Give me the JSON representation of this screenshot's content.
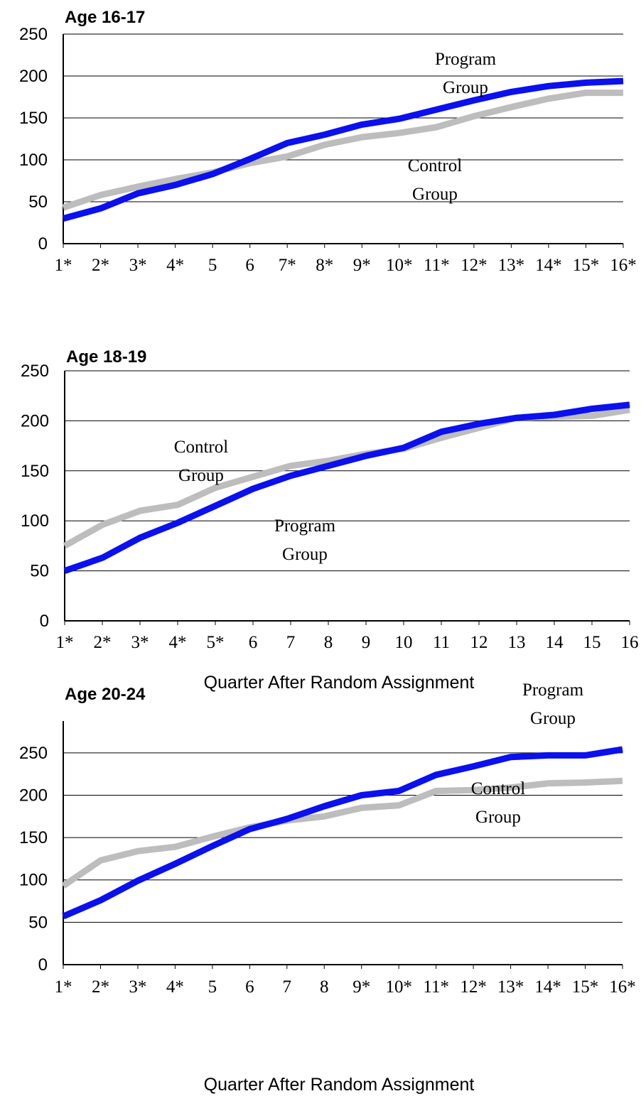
{
  "colors": {
    "program": "#0a10ee",
    "control": "#bdbdbd",
    "grid": "#000000",
    "axis": "#000000"
  },
  "chart_data": [
    {
      "type": "line",
      "title": "Age 16-17",
      "xlabel": "Quarter After Random Assignment",
      "ylabel": "",
      "ylim": [
        0,
        250
      ],
      "yticks": [
        0,
        50,
        100,
        150,
        200,
        250
      ],
      "grid": "horizontal",
      "categories": [
        "1*",
        "2*",
        "3*",
        "4*",
        "5",
        "6",
        "7*",
        "8*",
        "9*",
        "10*",
        "11*",
        "12*",
        "13*",
        "14*",
        "15*",
        "16*"
      ],
      "series": [
        {
          "name": "Program Group",
          "color_key": "program",
          "values": [
            30,
            42,
            60,
            70,
            83,
            101,
            120,
            130,
            142,
            149,
            160,
            171,
            181,
            188,
            192,
            194
          ]
        },
        {
          "name": "Control Group",
          "color_key": "control",
          "values": [
            43,
            58,
            68,
            77,
            85,
            96,
            104,
            118,
            127,
            132,
            139,
            152,
            163,
            173,
            180,
            180
          ]
        }
      ],
      "annotations": [
        {
          "lines": [
            "Program",
            "Group"
          ]
        },
        {
          "lines": [
            "Control",
            "Group"
          ]
        }
      ]
    },
    {
      "type": "line",
      "title": "Age 18-19",
      "xlabel": "Quarter After Random Assignment",
      "ylabel": "",
      "ylim": [
        0,
        250
      ],
      "yticks": [
        0,
        50,
        100,
        150,
        200,
        250
      ],
      "grid": "horizontal",
      "categories": [
        "1*",
        "2*",
        "3*",
        "4*",
        "5*",
        "6",
        "7",
        "8",
        "9",
        "10",
        "11",
        "12",
        "13",
        "14",
        "15",
        "16"
      ],
      "series": [
        {
          "name": "Program Group",
          "color_key": "program",
          "values": [
            50,
            63,
            83,
            98,
            115,
            132,
            145,
            155,
            165,
            173,
            189,
            197,
            203,
            206,
            212,
            216
          ]
        },
        {
          "name": "Control Group",
          "color_key": "control",
          "values": [
            75,
            96,
            110,
            116,
            133,
            144,
            155,
            160,
            167,
            172,
            183,
            193,
            203,
            204,
            205,
            211
          ]
        }
      ],
      "annotations": [
        {
          "lines": [
            "Control",
            "Group"
          ]
        },
        {
          "lines": [
            "Program",
            "Group"
          ]
        }
      ]
    },
    {
      "type": "line",
      "title": "Age 20-24",
      "xlabel": "Quarter After Random Assignment",
      "ylabel": "",
      "ylim": [
        0,
        275
      ],
      "yticks": [
        0,
        50,
        100,
        150,
        200,
        250
      ],
      "grid": "horizontal",
      "categories": [
        "1*",
        "2*",
        "3*",
        "4*",
        "5",
        "6",
        "7",
        "8",
        "9*",
        "10*",
        "11*",
        "12*",
        "13*",
        "14*",
        "15*",
        "16*"
      ],
      "series": [
        {
          "name": "Program Group",
          "color_key": "program",
          "values": [
            57,
            76,
            99,
            119,
            140,
            160,
            172,
            187,
            200,
            205,
            224,
            234,
            245,
            247,
            247,
            254
          ]
        },
        {
          "name": "Control Group",
          "color_key": "control",
          "values": [
            93,
            123,
            134,
            139,
            151,
            162,
            170,
            175,
            185,
            188,
            205,
            206,
            209,
            214,
            215,
            217
          ]
        }
      ],
      "annotations": [
        {
          "lines": [
            "Program",
            "Group"
          ]
        },
        {
          "lines": [
            "Control",
            "Group"
          ]
        }
      ]
    }
  ]
}
